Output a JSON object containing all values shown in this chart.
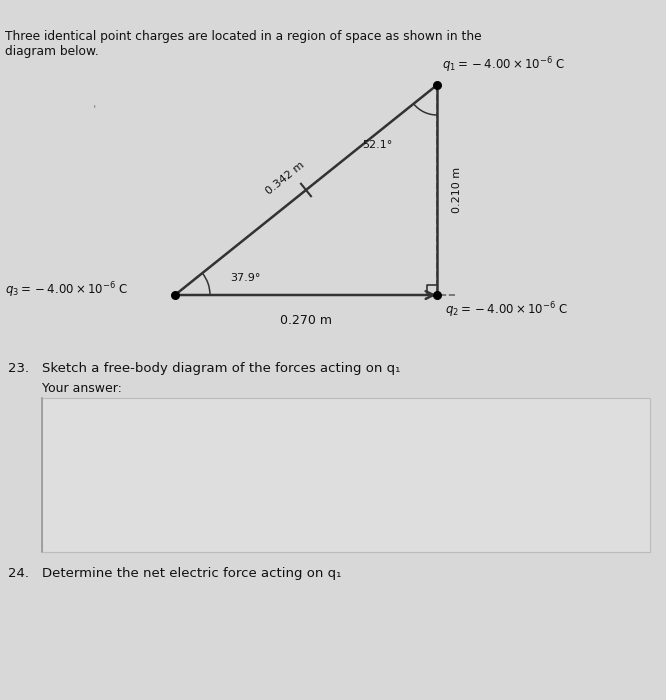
{
  "title_line1": "Three identical point charges are located in a region of space as shown in the",
  "title_line2": "diagram below.",
  "bg_color": "#d8d8d8",
  "diagram_bg": "#e8e8e8",
  "q1_label": "$q_1 =-4.00 \\times 10^{-6}$ C",
  "q2_label": "$q_2 =-4.00 \\times 10^{-6}$ C",
  "q3_label": "$q_3 =-4.00 \\times 10^{-6}$ C",
  "dist_hyp": "0.342 m",
  "dist_vert": "0.210 m",
  "dist_horiz": "0.270 m",
  "angle_bottom": "37.9°",
  "angle_top": "52.1°",
  "question23_text": "Sketch a free-body diagram of the forces acting on ",
  "question23_sub": "q₁",
  "question24_text": "Determine the net electric force acting on ",
  "question24_sub": "q₁",
  "your_answer": "Your answer:",
  "num23": "23.",
  "num24": "24.",
  "line_color": "#333333",
  "dashed_color": "#666666",
  "text_color": "#111111",
  "answer_box_color": "#dedede",
  "answer_box_edge": "#bbbbbb"
}
